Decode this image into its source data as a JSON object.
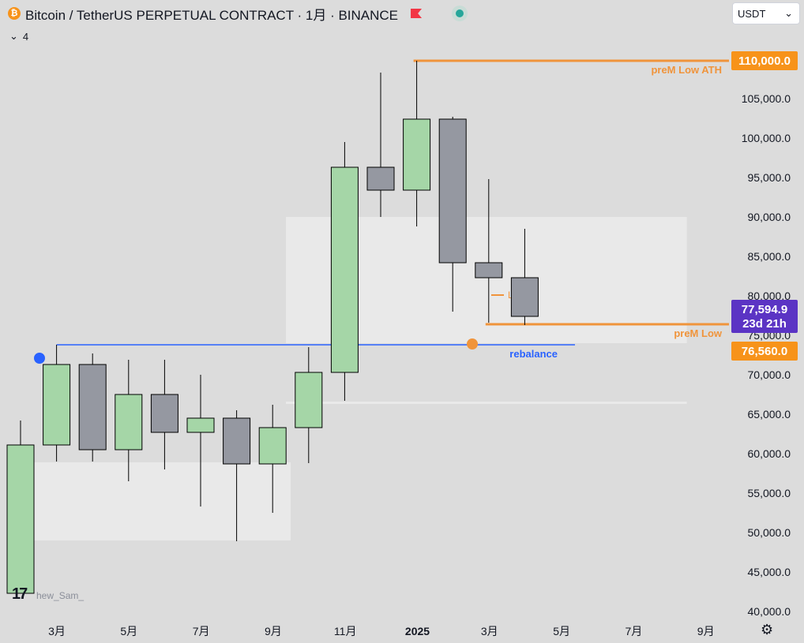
{
  "header": {
    "title": "Bitcoin / TetherUS PERPETUAL CONTRACT · 1月 · BINANCE",
    "btc_glyph": "₿",
    "collapse_count": "4",
    "collapse_glyph": "⌄"
  },
  "currency": {
    "value": "USDT",
    "chevron": "⌄"
  },
  "branding": {
    "logo": "17",
    "watermark": "hew_Sam_"
  },
  "colors": {
    "up_body": "#a5d6a7",
    "down_body": "#9598a1",
    "orange": "#f7931a",
    "orange_line": "#f0943b",
    "blue_line": "#2962ff",
    "label_purple": "#5b34c4"
  },
  "chart_data": {
    "type": "candlestick",
    "ylim": [
      40000,
      113000
    ],
    "y_ticks": [
      "110,000.0",
      "105,000.0",
      "100,000.0",
      "95,000.0",
      "90,000.0",
      "85,000.0",
      "80,000.0",
      "75,000.0",
      "70,000.0",
      "65,000.0",
      "60,000.0",
      "55,000.0",
      "50,000.0",
      "45,000.0",
      "40,000.0"
    ],
    "x_ticks": [
      "3月",
      "5月",
      "7月",
      "9月",
      "11月",
      "2025",
      "3月",
      "5月",
      "7月",
      "9月"
    ],
    "candles": [
      {
        "o": 42300,
        "h": 64200,
        "l": 42300,
        "c": 61100
      },
      {
        "o": 61100,
        "h": 73800,
        "l": 59000,
        "c": 71300
      },
      {
        "o": 71300,
        "h": 72700,
        "l": 59000,
        "c": 60500
      },
      {
        "o": 60500,
        "h": 71900,
        "l": 56500,
        "c": 67500
      },
      {
        "o": 67500,
        "h": 71900,
        "l": 58000,
        "c": 62700
      },
      {
        "o": 62700,
        "h": 70000,
        "l": 53300,
        "c": 64500
      },
      {
        "o": 64500,
        "h": 65500,
        "l": 48900,
        "c": 58700
      },
      {
        "o": 58700,
        "h": 66200,
        "l": 52500,
        "c": 63300
      },
      {
        "o": 63300,
        "h": 73500,
        "l": 58800,
        "c": 70300
      },
      {
        "o": 70300,
        "h": 99500,
        "l": 66700,
        "c": 96300
      },
      {
        "o": 96300,
        "h": 108300,
        "l": 90000,
        "c": 93400
      },
      {
        "o": 93400,
        "h": 109800,
        "l": 88800,
        "c": 102400
      },
      {
        "o": 102400,
        "h": 102700,
        "l": 78000,
        "c": 84200
      },
      {
        "o": 84200,
        "h": 94800,
        "l": 76600,
        "c": 82300
      },
      {
        "o": 82300,
        "h": 88500,
        "l": 76300,
        "c": 77400
      }
    ],
    "zones": [
      {
        "from": 1,
        "to": 7,
        "low": 49000,
        "high": 58900
      },
      {
        "from": 8,
        "to": 18,
        "low": 74000,
        "high": 90000
      },
      {
        "from": 8,
        "to": 18,
        "low": 66300,
        "high": 66600
      }
    ],
    "levels": [
      {
        "name": "preM Low ATH",
        "price": 109800,
        "from": 11,
        "color": "#f0943b"
      },
      {
        "name": "preM Low",
        "price": 76400,
        "from": 13,
        "color": "#f0943b"
      },
      {
        "name": "rebalance",
        "price": 73800,
        "from": 1,
        "to": 15,
        "color": "#2962ff"
      }
    ],
    "small_label": "L",
    "price_labels": [
      {
        "text": "110,000.0",
        "price": 109800,
        "bg": "#f7931a"
      },
      {
        "text": "77,594.9",
        "sub": "23d 21h",
        "price": 77300,
        "bg": "#5b34c4"
      },
      {
        "text": "76,560.0",
        "price": 73000,
        "bg": "#f7931a"
      }
    ]
  }
}
